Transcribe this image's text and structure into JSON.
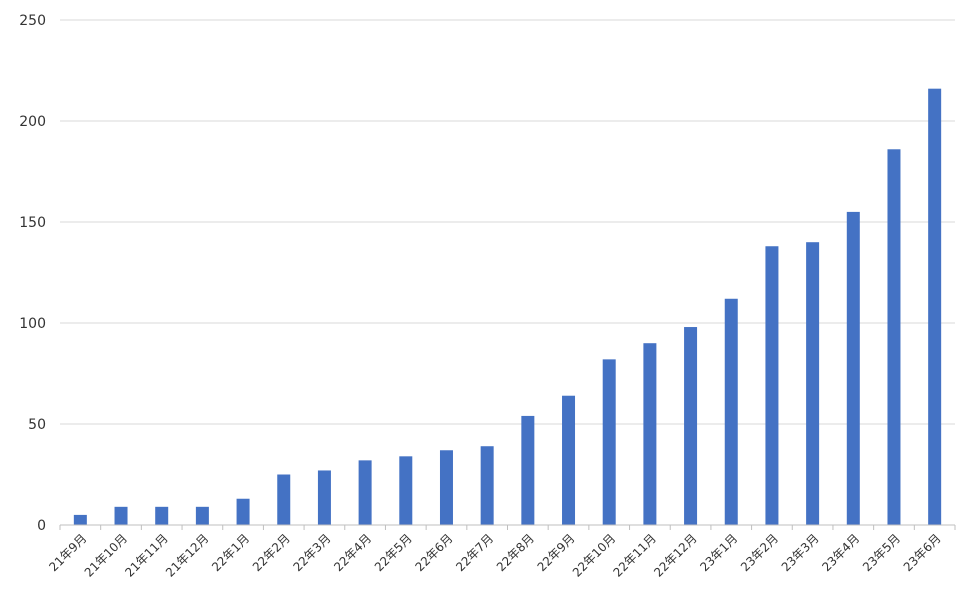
{
  "chart_data": {
    "type": "bar",
    "title": "",
    "xlabel": "",
    "ylabel": "",
    "ylim": [
      0,
      250
    ],
    "yticks": [
      0,
      50,
      100,
      150,
      200,
      250
    ],
    "grid": true,
    "legend": "none",
    "bar_color": "#4472C4",
    "categories": [
      "21年9月",
      "21年10月",
      "21年11月",
      "21年12月",
      "22年1月",
      "22年2月",
      "22年3月",
      "22年4月",
      "22年5月",
      "22年6月",
      "22年7月",
      "22年8月",
      "22年9月",
      "22年10月",
      "22年11月",
      "22年12月",
      "23年1月",
      "23年2月",
      "23年3月",
      "23年4月",
      "23年5月",
      "23年6月"
    ],
    "values": [
      5,
      9,
      9,
      9,
      13,
      25,
      27,
      32,
      34,
      37,
      39,
      54,
      64,
      82,
      90,
      98,
      112,
      138,
      140,
      155,
      186,
      216
    ]
  }
}
